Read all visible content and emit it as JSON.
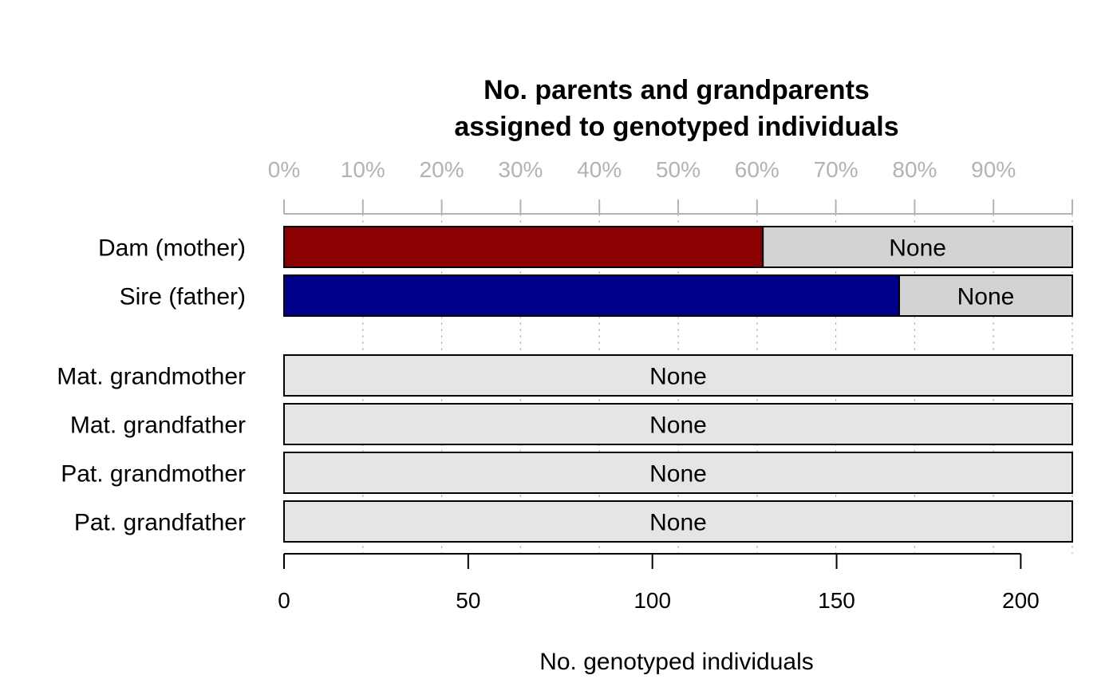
{
  "chart_data": {
    "type": "bar",
    "orientation": "horizontal",
    "stacked": true,
    "title_lines": [
      "No. parents and grandparents",
      "assigned to genotyped individuals"
    ],
    "xlabel": "No. genotyped individuals",
    "total": 214,
    "xlim": [
      0,
      214
    ],
    "bottom_ticks": [
      0,
      50,
      100,
      150,
      200
    ],
    "top_ticks": [
      "0%",
      "10%",
      "20%",
      "30%",
      "40%",
      "50%",
      "60%",
      "70%",
      "80%",
      "90%"
    ],
    "grid": "dotted vertical at percent ticks",
    "categories": [
      {
        "label": "Dam (mother)",
        "assigned": 130,
        "none_label": "None",
        "color": "#8B0000",
        "none_color": "#D3D3D3"
      },
      {
        "label": "Sire (father)",
        "assigned": 167,
        "none_label": "None",
        "color": "#00008B",
        "none_color": "#D3D3D3"
      },
      {
        "label": "Mat. grandmother",
        "assigned": 0,
        "none_label": "None",
        "color": "#8B0000",
        "none_color": "#E5E5E5"
      },
      {
        "label": "Mat. grandfather",
        "assigned": 0,
        "none_label": "None",
        "color": "#00008B",
        "none_color": "#E5E5E5"
      },
      {
        "label": "Pat. grandmother",
        "assigned": 0,
        "none_label": "None",
        "color": "#8B0000",
        "none_color": "#E5E5E5"
      },
      {
        "label": "Pat. grandfather",
        "assigned": 0,
        "none_label": "None",
        "color": "#00008B",
        "none_color": "#E5E5E5"
      }
    ]
  }
}
